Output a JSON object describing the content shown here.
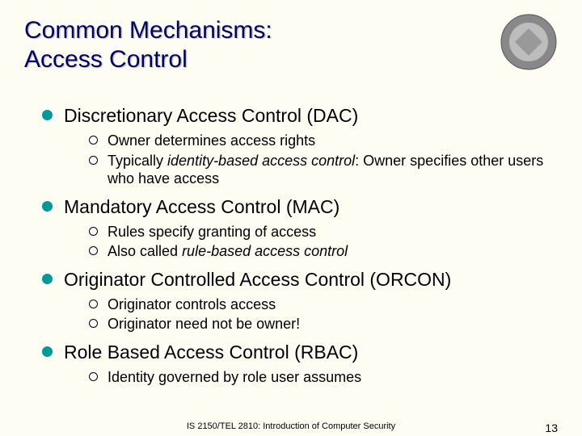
{
  "colors": {
    "background": "#fdfdf4",
    "title_text": "#000060",
    "title_shadow": "#c8c8c8",
    "body_text": "#000000",
    "bullet_fill": "#009999",
    "sub_bullet_border": "#000000",
    "seal_outer": "#888888",
    "seal_inner": "#bdbdbd"
  },
  "title_line1": "Common Mechanisms:",
  "title_line2": "Access Control",
  "sections": [
    {
      "heading": "Discretionary Access Control (DAC)",
      "items": [
        {
          "pre": "Owner determines access rights"
        },
        {
          "pre": "Typically ",
          "ital": "identity-based access control",
          "post": ":  Owner specifies other users who have access"
        }
      ]
    },
    {
      "heading": "Mandatory Access Control (MAC)",
      "items": [
        {
          "pre": "Rules specify granting of access"
        },
        {
          "pre": "Also called ",
          "ital": "rule-based access control"
        }
      ]
    },
    {
      "heading": "Originator Controlled Access Control (ORCON)",
      "items": [
        {
          "pre": "Originator controls access"
        },
        {
          "pre": "Originator need not be owner!"
        }
      ]
    },
    {
      "heading": "Role Based Access Control (RBAC)",
      "items": [
        {
          "pre": "Identity governed by role user assumes"
        }
      ]
    }
  ],
  "footer": {
    "course": "IS 2150/TEL 2810: Introduction of Computer Security",
    "page": "13"
  }
}
